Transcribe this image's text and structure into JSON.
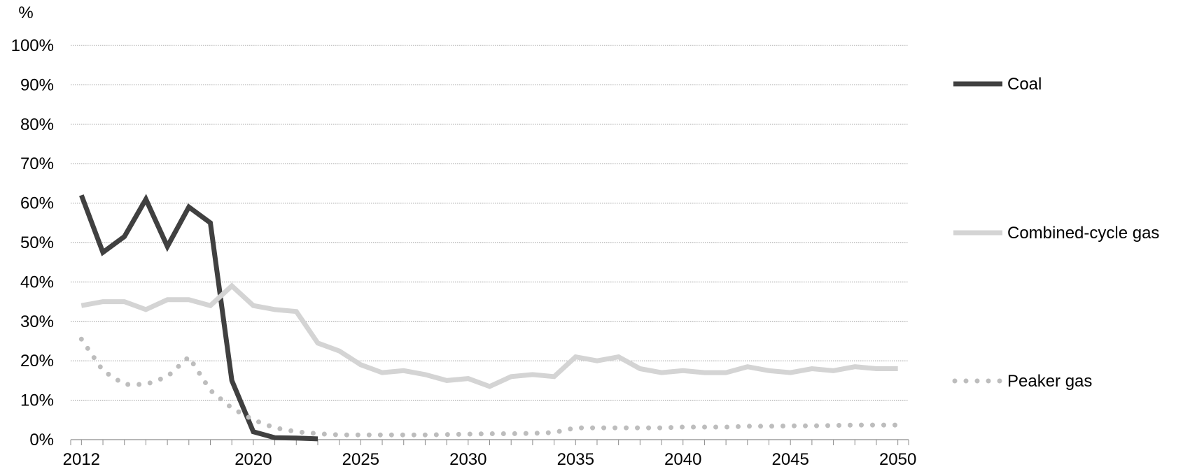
{
  "chart_data": {
    "type": "line",
    "ylabel": "%",
    "ylim": [
      0,
      100
    ],
    "yticks": [
      "0%",
      "10%",
      "20%",
      "30%",
      "40%",
      "50%",
      "60%",
      "70%",
      "80%",
      "90%",
      "100%"
    ],
    "xlim": [
      2011.5,
      2050.5
    ],
    "xtick_values": [
      2012,
      2020,
      2025,
      2030,
      2035,
      2040,
      2045,
      2050
    ],
    "xticks": [
      "2012",
      "2020",
      "2025",
      "2030",
      "2035",
      "2040",
      "2045",
      "2050"
    ],
    "grid": "horizontal dotted",
    "legend_position": "right",
    "series": [
      {
        "name": "Coal",
        "color": "#404040",
        "style": "solid",
        "x": [
          2012,
          2013,
          2014,
          2015,
          2016,
          2017,
          2018,
          2019,
          2020,
          2021,
          2022,
          2023
        ],
        "values": [
          62,
          47.5,
          51.5,
          61,
          49,
          59,
          55,
          15,
          2,
          0.5,
          0.4,
          0.2
        ]
      },
      {
        "name": "Combined-cycle gas",
        "color": "#d4d4d4",
        "style": "solid",
        "x": [
          2012,
          2013,
          2014,
          2015,
          2016,
          2017,
          2018,
          2019,
          2020,
          2021,
          2022,
          2023,
          2024,
          2025,
          2026,
          2027,
          2028,
          2029,
          2030,
          2031,
          2032,
          2033,
          2034,
          2035,
          2036,
          2037,
          2038,
          2039,
          2040,
          2041,
          2042,
          2043,
          2044,
          2045,
          2046,
          2047,
          2048,
          2049,
          2050
        ],
        "values": [
          34,
          35,
          35,
          33,
          35.5,
          35.5,
          34,
          39,
          34,
          33,
          32.5,
          24.5,
          22.5,
          19,
          17,
          17.5,
          16.5,
          15,
          15.5,
          13.5,
          16,
          16.5,
          16,
          21,
          20,
          21,
          18,
          17,
          17.5,
          17,
          17,
          18.5,
          17.5,
          17,
          18,
          17.5,
          18.5,
          18,
          18
        ]
      },
      {
        "name": "Peaker gas",
        "color": "#bdbdbd",
        "style": "dotted",
        "x": [
          2012,
          2013,
          2014,
          2015,
          2016,
          2017,
          2018,
          2019,
          2020,
          2021,
          2022,
          2023,
          2024,
          2025,
          2026,
          2027,
          2028,
          2029,
          2030,
          2031,
          2032,
          2033,
          2034,
          2035,
          2036,
          2037,
          2038,
          2039,
          2040,
          2041,
          2042,
          2043,
          2044,
          2045,
          2046,
          2047,
          2048,
          2049,
          2050
        ],
        "values": [
          25.5,
          17.5,
          14,
          14,
          16,
          21,
          12.5,
          8,
          5,
          3,
          2,
          1.5,
          1.2,
          1.2,
          1.2,
          1.2,
          1.2,
          1.3,
          1.4,
          1.5,
          1.5,
          1.6,
          1.8,
          3,
          3,
          3,
          3,
          3,
          3.2,
          3.2,
          3.2,
          3.4,
          3.4,
          3.5,
          3.5,
          3.6,
          3.7,
          3.7,
          3.7
        ]
      }
    ]
  }
}
